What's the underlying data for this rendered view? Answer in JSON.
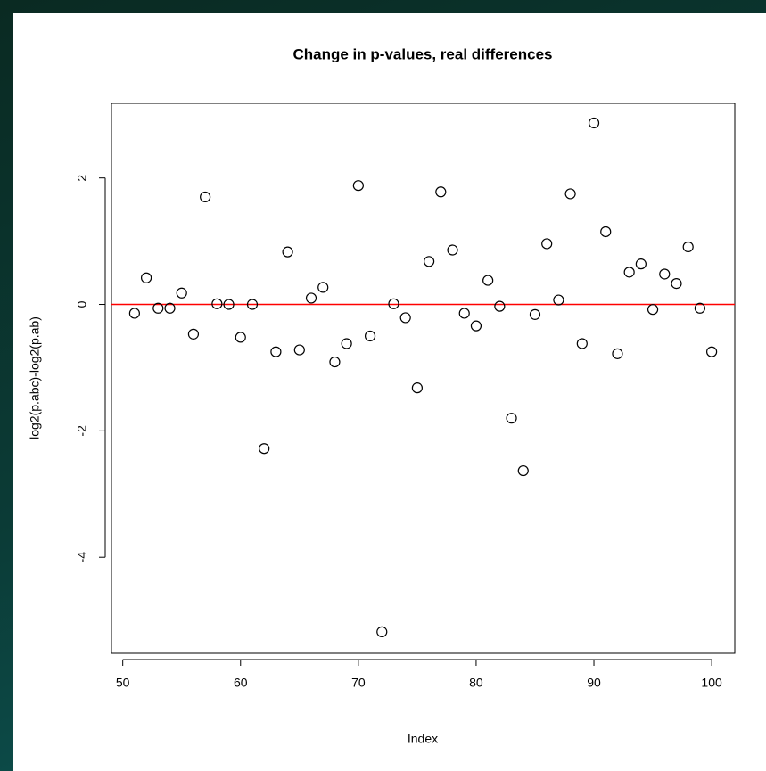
{
  "chart_data": {
    "type": "scatter",
    "title": "Change in p-values, real differences",
    "xlabel": "Index",
    "ylabel": "log2(p.abc)-log2(p.ab)",
    "x": [
      51,
      52,
      53,
      54,
      55,
      56,
      57,
      58,
      59,
      60,
      61,
      62,
      63,
      64,
      65,
      66,
      67,
      68,
      69,
      70,
      71,
      72,
      73,
      74,
      75,
      76,
      77,
      78,
      79,
      80,
      81,
      82,
      83,
      84,
      85,
      86,
      87,
      88,
      89,
      90,
      91,
      92,
      93,
      94,
      95,
      96,
      97,
      98,
      99,
      100
    ],
    "values": [
      -0.14,
      0.42,
      -0.06,
      -0.06,
      0.18,
      -0.47,
      1.7,
      0.01,
      0.0,
      -0.52,
      0.0,
      -2.28,
      -0.75,
      0.83,
      -0.72,
      0.1,
      0.27,
      -0.91,
      -0.62,
      1.88,
      -0.5,
      -5.18,
      0.01,
      -0.21,
      -1.32,
      0.68,
      1.78,
      0.86,
      -0.14,
      -0.34,
      0.38,
      -0.03,
      -1.8,
      -2.63,
      -0.16,
      0.96,
      0.07,
      1.75,
      -0.62,
      2.87,
      1.15,
      -0.78,
      0.51,
      0.64,
      -0.08,
      0.48,
      0.33,
      0.91,
      -0.06,
      -0.75
    ],
    "color": "#000000",
    "xlim": [
      49.04,
      101.96
    ],
    "xticks": [
      50,
      60,
      70,
      80,
      90,
      100
    ],
    "ylim": [
      -5.52,
      3.18
    ],
    "yticks": [
      -4,
      -2,
      0,
      2
    ],
    "hline": {
      "value": 0,
      "color": "#ff0000"
    },
    "grid": false
  }
}
